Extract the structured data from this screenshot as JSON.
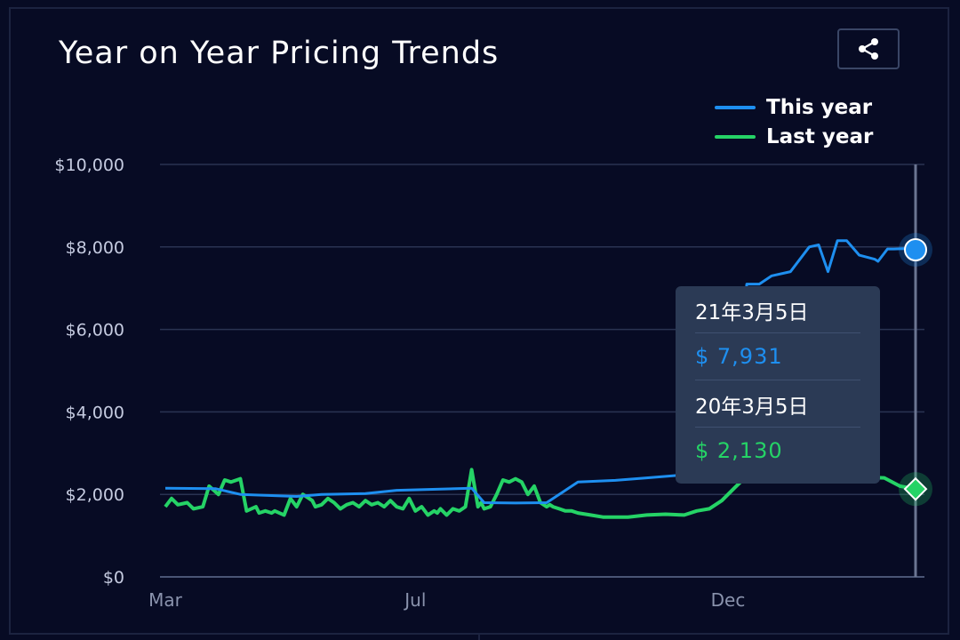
{
  "title": "Year on Year Pricing Trends",
  "share_icon": "share-icon",
  "colors": {
    "this_year": "#1e8ff0",
    "last_year": "#25d366",
    "background": "#070b24"
  },
  "tooltip": {
    "date1": "21年3月5日",
    "value1": "$ 7,931",
    "date2": "20年3月5日",
    "value2": "$ 2,130"
  },
  "chart_data": {
    "type": "line",
    "y_tick_labels": [
      "$10,000",
      "$8,000",
      "$6,000",
      "$4,000",
      "$2,000",
      "$0"
    ],
    "x_tick_labels": [
      "Mar",
      "Jul",
      "Dec"
    ],
    "ylim": [
      0,
      10000
    ],
    "grid": true,
    "legend_position": "top-right",
    "x_months": [
      0,
      4,
      9
    ],
    "x_max": 12,
    "series": [
      {
        "name": "This year",
        "x": [
          0,
          0.8,
          1.2,
          2.1,
          2.5,
          3.2,
          3.7,
          4.9,
          5.1,
          5.6,
          6.1,
          6.6,
          7.2,
          7.7,
          8.5,
          9.0,
          9.3,
          9.5,
          9.7,
          10.0,
          10.3,
          10.45,
          10.6,
          10.75,
          10.9,
          11.1,
          11.35,
          11.4,
          11.55,
          11.65,
          11.8,
          12.0
        ],
        "values": [
          2150,
          2140,
          2000,
          1950,
          2000,
          2020,
          2100,
          2150,
          1800,
          1790,
          1800,
          2300,
          2340,
          2400,
          2500,
          2530,
          7100,
          7100,
          7300,
          7400,
          8000,
          8050,
          7400,
          8150,
          8150,
          7800,
          7700,
          7650,
          7950,
          7950,
          7960,
          7931
        ]
      },
      {
        "name": "Last year",
        "x": [
          0,
          0.1,
          0.2,
          0.35,
          0.45,
          0.6,
          0.7,
          0.85,
          0.95,
          1.05,
          1.2,
          1.3,
          1.45,
          1.5,
          1.6,
          1.7,
          1.75,
          1.9,
          2.0,
          2.1,
          2.2,
          2.3,
          2.35,
          2.4,
          2.5,
          2.6,
          2.7,
          2.8,
          2.9,
          3.0,
          3.1,
          3.2,
          3.3,
          3.4,
          3.5,
          3.6,
          3.7,
          3.8,
          3.9,
          4.0,
          4.1,
          4.2,
          4.3,
          4.35,
          4.4,
          4.5,
          4.6,
          4.7,
          4.8,
          4.9,
          5.0,
          5.05,
          5.1,
          5.2,
          5.3,
          5.4,
          5.5,
          5.6,
          5.7,
          5.8,
          5.9,
          6.0,
          6.1,
          6.15,
          6.2,
          6.3,
          6.4,
          6.5,
          6.6,
          6.8,
          7.0,
          7.2,
          7.4,
          7.7,
          8.0,
          8.3,
          8.5,
          8.7,
          8.9,
          9.0,
          9.1,
          9.2,
          9.3,
          9.4,
          11.5,
          11.75,
          12.0
        ],
        "values": [
          1700,
          1900,
          1750,
          1800,
          1650,
          1700,
          2200,
          2000,
          2350,
          2300,
          2380,
          1600,
          1700,
          1550,
          1600,
          1550,
          1600,
          1500,
          1900,
          1700,
          2000,
          1900,
          1850,
          1700,
          1750,
          1900,
          1800,
          1650,
          1750,
          1800,
          1700,
          1850,
          1750,
          1800,
          1700,
          1850,
          1700,
          1650,
          1900,
          1600,
          1700,
          1500,
          1600,
          1550,
          1650,
          1500,
          1650,
          1600,
          1700,
          2600,
          1700,
          1800,
          1650,
          1700,
          2000,
          2350,
          2300,
          2380,
          2300,
          2000,
          2200,
          1800,
          1700,
          1750,
          1700,
          1650,
          1600,
          1600,
          1550,
          1500,
          1450,
          1450,
          1450,
          1500,
          1520,
          1500,
          1600,
          1650,
          1850,
          2000,
          2150,
          2300,
          2350,
          2500,
          2400,
          2200,
          2130
        ]
      }
    ]
  }
}
